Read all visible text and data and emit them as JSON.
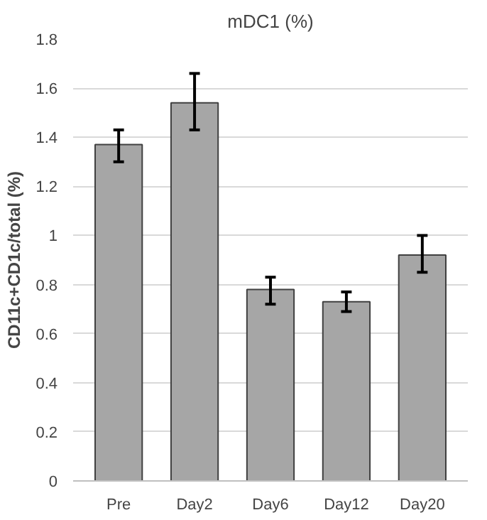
{
  "chart_data": {
    "type": "bar",
    "title": "mDC1 (%)",
    "ylabel": "CD11c+CD1c/total (%)",
    "categories": [
      "Pre",
      "Day2",
      "Day6",
      "Day12",
      "Day20"
    ],
    "values": [
      1.37,
      1.54,
      0.78,
      0.73,
      0.92
    ],
    "errors": [
      [
        1.3,
        1.43
      ],
      [
        1.43,
        1.66
      ],
      [
        0.72,
        0.83
      ],
      [
        0.69,
        0.77
      ],
      [
        0.85,
        1.0
      ]
    ],
    "color": "#a6a6a6",
    "ylim": [
      0,
      1.8
    ],
    "yticks": [
      0,
      {
        "value": 0.2,
        "label": "0.2"
      },
      {
        "value": 0.4,
        "label": "0.4"
      },
      {
        "value": 0.6,
        "label": "0.6"
      },
      {
        "value": 0.8,
        "label": "0.8"
      },
      1,
      {
        "value": 1.2,
        "label": "1.2"
      },
      {
        "value": 1.4,
        "label": "1.4"
      },
      {
        "value": 1.6,
        "label": "1.6"
      },
      {
        "value": 1.8,
        "label": "1.8"
      }
    ],
    "grid": "y"
  }
}
